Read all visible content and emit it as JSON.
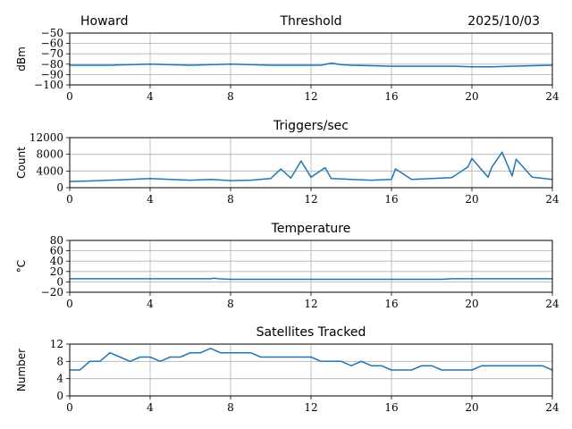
{
  "header": {
    "station": "Howard",
    "date": "2025/10/03"
  },
  "colors": {
    "series": "#1f77b4",
    "grid": "#b0b0b0"
  },
  "chart_data": [
    {
      "type": "line",
      "title": "Threshold",
      "ylabel": "dBm",
      "xlim": [
        0,
        24
      ],
      "ylim": [
        -100,
        -50
      ],
      "x_ticks": [
        0,
        4,
        8,
        12,
        16,
        20,
        24
      ],
      "y_ticks": [
        -100,
        -90,
        -80,
        -70,
        -60,
        -50
      ],
      "y_tick_labels": [
        "−100",
        "−90",
        "−80",
        "−70",
        "−60",
        "−50"
      ],
      "grid": true,
      "series": [
        {
          "x": [
            0,
            1,
            2,
            3,
            4,
            5,
            6,
            7,
            8,
            9,
            10,
            11,
            12,
            12.5,
            13,
            13.5,
            14,
            15,
            16,
            17,
            18,
            19,
            20,
            21,
            22,
            23,
            24
          ],
          "y": [
            -81,
            -81,
            -81,
            -80.5,
            -80,
            -80.5,
            -81,
            -80.5,
            -80,
            -80.5,
            -81,
            -81,
            -81,
            -81,
            -79,
            -80.5,
            -81,
            -81.5,
            -82,
            -82,
            -82,
            -82,
            -82.5,
            -82.5,
            -82,
            -81.5,
            -81
          ]
        }
      ]
    },
    {
      "type": "line",
      "title": "Triggers/sec",
      "ylabel": "Count",
      "xlim": [
        0,
        24
      ],
      "ylim": [
        0,
        12000
      ],
      "x_ticks": [
        0,
        4,
        8,
        12,
        16,
        20,
        24
      ],
      "y_ticks": [
        0,
        4000,
        8000,
        12000
      ],
      "y_tick_labels": [
        "0",
        "4000",
        "8000",
        "12000"
      ],
      "grid": true,
      "series": [
        {
          "x": [
            0,
            1,
            2,
            3,
            4,
            5,
            6,
            7,
            8,
            9,
            10,
            10.5,
            11,
            11.5,
            12,
            12.7,
            13,
            14,
            15,
            16,
            16.2,
            17,
            18,
            19,
            19.8,
            20,
            20.8,
            21,
            21.5,
            22,
            22.2,
            23,
            24
          ],
          "y": [
            1500,
            1600,
            1800,
            2000,
            2200,
            2000,
            1800,
            2000,
            1700,
            1800,
            2200,
            4500,
            2300,
            6400,
            2500,
            4800,
            2200,
            2000,
            1800,
            2000,
            4500,
            2000,
            2200,
            2400,
            5000,
            7000,
            2500,
            5000,
            8500,
            2800,
            6800,
            2500,
            2000
          ]
        }
      ]
    },
    {
      "type": "line",
      "title": "Temperature",
      "ylabel": "°C",
      "xlim": [
        0,
        24
      ],
      "ylim": [
        -20,
        80
      ],
      "x_ticks": [
        0,
        4,
        8,
        12,
        16,
        20,
        24
      ],
      "y_ticks": [
        -20,
        0,
        20,
        40,
        60,
        80
      ],
      "y_tick_labels": [
        "−20",
        "0",
        "20",
        "40",
        "60",
        "80"
      ],
      "grid": true,
      "series": [
        {
          "x": [
            0,
            7,
            7.2,
            7.4,
            8,
            12,
            16,
            18.5,
            19,
            20,
            24
          ],
          "y": [
            6,
            6,
            7,
            6,
            5,
            5,
            5,
            5,
            6,
            6,
            6
          ]
        }
      ]
    },
    {
      "type": "line",
      "title": "Satellites Tracked",
      "ylabel": "Number",
      "xlim": [
        0,
        24
      ],
      "ylim": [
        0,
        12
      ],
      "x_ticks": [
        0,
        4,
        8,
        12,
        16,
        20,
        24
      ],
      "y_ticks": [
        0,
        4,
        8,
        12
      ],
      "y_tick_labels": [
        "0",
        "4",
        "8",
        "12"
      ],
      "grid": true,
      "series": [
        {
          "x": [
            0,
            0.5,
            1,
            1.5,
            2,
            2.5,
            3,
            3.5,
            4,
            4.5,
            5,
            5.5,
            6,
            6.5,
            7,
            7.5,
            8,
            8.5,
            9,
            9.5,
            10,
            10.5,
            11,
            11.5,
            12,
            12.5,
            13,
            13.5,
            14,
            14.5,
            15,
            15.5,
            16,
            16.5,
            17,
            17.5,
            18,
            18.5,
            19,
            19.5,
            20,
            20.5,
            21,
            21.5,
            22,
            22.5,
            23,
            23.5,
            24
          ],
          "y": [
            6,
            6,
            8,
            8,
            10,
            9,
            8,
            9,
            9,
            8,
            9,
            9,
            10,
            10,
            11,
            10,
            10,
            10,
            10,
            9,
            9,
            9,
            9,
            9,
            9,
            8,
            8,
            8,
            7,
            8,
            7,
            7,
            6,
            6,
            6,
            7,
            7,
            6,
            6,
            6,
            6,
            7,
            7,
            7,
            7,
            7,
            7,
            7,
            6
          ]
        }
      ]
    }
  ]
}
